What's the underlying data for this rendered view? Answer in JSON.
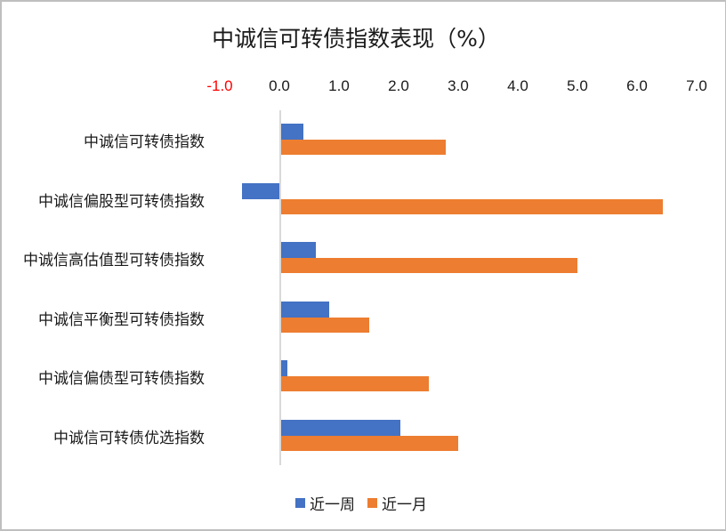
{
  "chart_data": {
    "type": "bar",
    "orientation": "horizontal",
    "title": "中诚信可转债指数表现（%）",
    "xlabel": "",
    "ylabel": "",
    "xlim": [
      -1.0,
      7.0
    ],
    "x_ticks": [
      "-1.0",
      "0.0",
      "1.0",
      "2.0",
      "3.0",
      "4.0",
      "5.0",
      "6.0",
      "7.0"
    ],
    "negative_tick_color": "#ff0000",
    "grid": false,
    "legend_position": "bottom",
    "categories": [
      "中诚信可转债指数",
      "中诚信偏股型可转债指数",
      "中诚信高估值型可转债指数",
      "中诚信平衡型可转债指数",
      "中诚信偏债型可转债指数",
      "中诚信可转债优选指数"
    ],
    "series": [
      {
        "name": "近一周",
        "color": "#4472c4",
        "values": [
          0.39,
          -0.64,
          0.6,
          0.82,
          0.12,
          2.01
        ]
      },
      {
        "name": "近一月",
        "color": "#ed7d31",
        "values": [
          2.78,
          6.42,
          4.99,
          1.49,
          2.49,
          2.99
        ]
      }
    ]
  },
  "title": "中诚信可转债指数表现（%）",
  "ticks": [
    "-1.0",
    "0.0",
    "1.0",
    "2.0",
    "3.0",
    "4.0",
    "5.0",
    "6.0",
    "7.0"
  ],
  "categories": [
    "中诚信可转债指数",
    "中诚信偏股型可转债指数",
    "中诚信高估值型可转债指数",
    "中诚信平衡型可转债指数",
    "中诚信偏债型可转债指数",
    "中诚信可转债优选指数"
  ],
  "legend": {
    "week": "近一周",
    "month": "近一月"
  },
  "colors": {
    "week": "#4472c4",
    "month": "#ed7d31",
    "negative_tick": "#ff0000"
  }
}
